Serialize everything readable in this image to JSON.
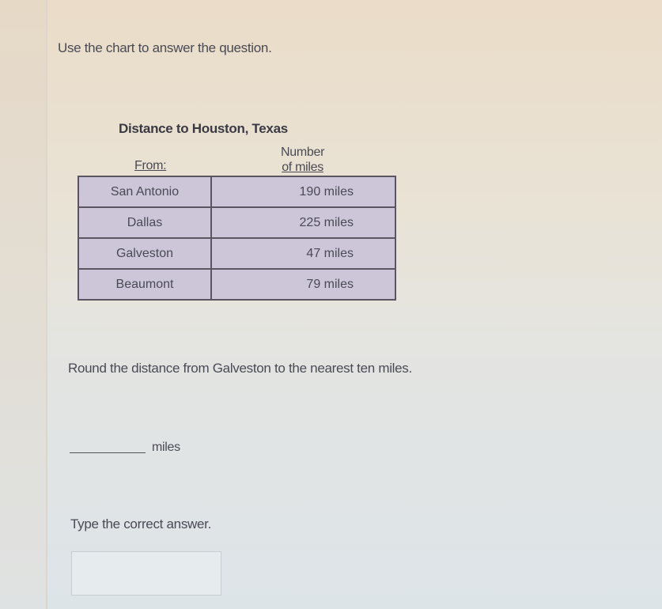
{
  "instruction": "Use the chart to answer the question.",
  "table": {
    "title": "Distance to Houston, Texas",
    "col_from": "From:",
    "col_miles_line1": "Number",
    "col_miles_line2": "of miles",
    "rows": [
      {
        "from": "San Antonio",
        "miles": "190 miles"
      },
      {
        "from": "Dallas",
        "miles": "225 miles"
      },
      {
        "from": "Galveston",
        "miles": "47 miles"
      },
      {
        "from": "Beaumont",
        "miles": "79 miles"
      }
    ]
  },
  "question": "Round the distance from Galveston to the nearest ten miles.",
  "answer_unit": "miles",
  "prompt": "Type the correct answer.",
  "answer_value": ""
}
